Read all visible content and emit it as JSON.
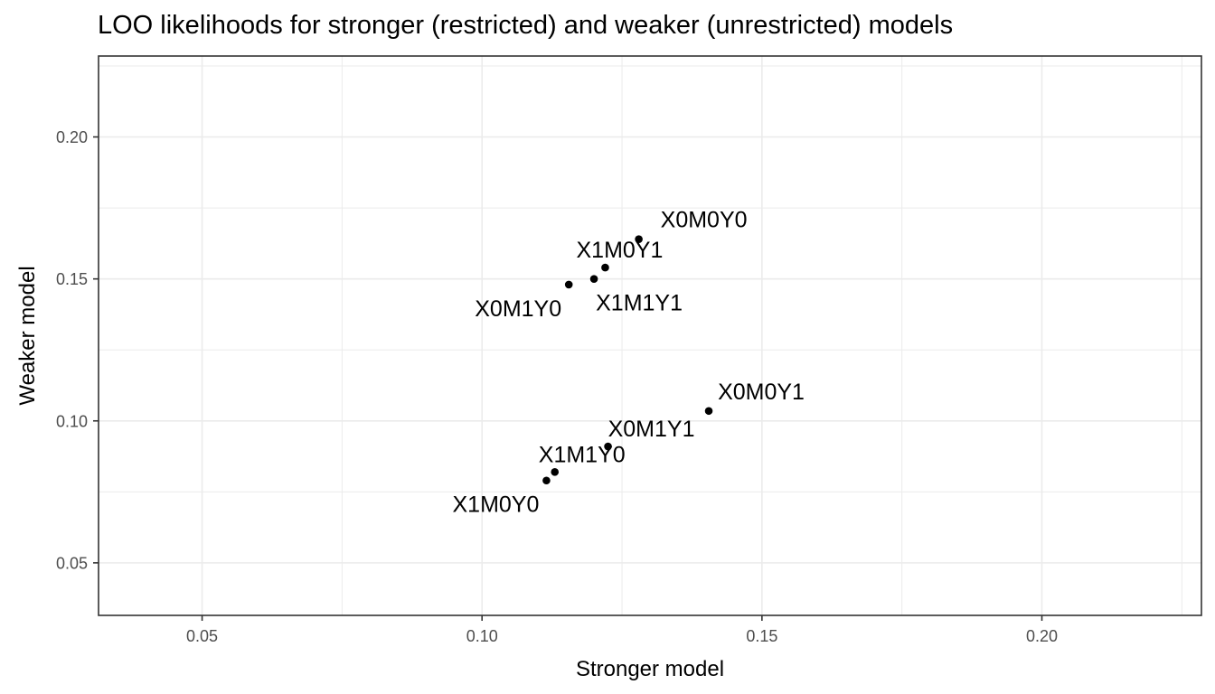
{
  "chart_data": {
    "type": "scatter",
    "title": "LOO likelihoods for stronger (restricted) and weaker (unrestricted) models",
    "xlabel": "Stronger model",
    "ylabel": "Weaker model",
    "xlim": [
      0.0315,
      0.2285
    ],
    "ylim": [
      0.0315,
      0.2285
    ],
    "x_ticks": [
      0.05,
      0.1,
      0.15,
      0.2
    ],
    "x_tick_labels": [
      "0.05",
      "0.10",
      "0.15",
      "0.20"
    ],
    "y_ticks": [
      0.05,
      0.1,
      0.15,
      0.2
    ],
    "y_tick_labels": [
      "0.05",
      "0.10",
      "0.15",
      "0.20"
    ],
    "grid": true,
    "points": [
      {
        "label": "X0M0Y0",
        "x": 0.128,
        "y": 0.164
      },
      {
        "label": "X1M0Y1",
        "x": 0.122,
        "y": 0.154
      },
      {
        "label": "X1M1Y1",
        "x": 0.12,
        "y": 0.15
      },
      {
        "label": "X0M1Y0",
        "x": 0.1155,
        "y": 0.148
      },
      {
        "label": "X0M0Y1",
        "x": 0.1405,
        "y": 0.1035
      },
      {
        "label": "X0M1Y1",
        "x": 0.1225,
        "y": 0.091
      },
      {
        "label": "X1M1Y0",
        "x": 0.113,
        "y": 0.082
      },
      {
        "label": "X1M0Y0",
        "x": 0.1115,
        "y": 0.079
      }
    ]
  }
}
